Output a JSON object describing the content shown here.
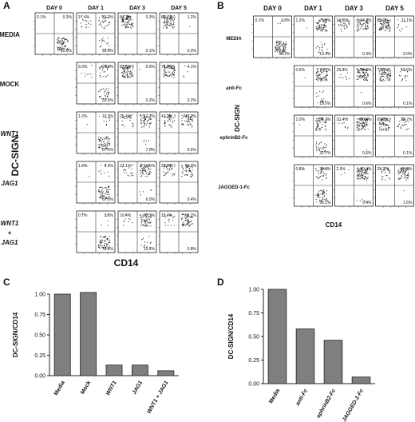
{
  "panel_letters": {
    "a": "A",
    "b": "B",
    "c": "C",
    "d": "D"
  },
  "panel_a": {
    "day_headers": [
      "DAY 0",
      "DAY 1",
      "DAY 3",
      "DAY 5"
    ],
    "row_labels": [
      "MEDIA",
      "MOCK",
      "WNT1",
      "JAG1",
      "WNT1 + JAG1"
    ],
    "row_label_italic": [
      false,
      false,
      true,
      true,
      true
    ],
    "y_axis_label": "DC-SIGN",
    "x_axis_label": "CD14",
    "quadrants": [
      [
        [
          "0.1%",
          "0.3%",
          "",
          "80.0%"
        ],
        [
          "17.4%",
          "33.2%",
          "",
          "18.9%"
        ],
        [
          "84.1%",
          "0.3%",
          "",
          "0.1%"
        ],
        [
          "80.7%",
          "1.2%",
          "",
          "0.3%"
        ]
      ],
      [
        null,
        [
          "9.3%",
          "28.9%",
          "",
          "32.6%"
        ],
        [
          "82.5%",
          "0.9%",
          "",
          "0.2%"
        ],
        [
          "76.0%",
          "4.1%",
          "",
          "0.2%"
        ]
      ],
      [
        null,
        [
          "1.2%",
          "10.3%",
          "",
          "67.1%"
        ],
        [
          "25.4%",
          "57.1%",
          "",
          "7.0%"
        ],
        [
          "41.3%",
          "48.2%",
          "",
          "0.5%"
        ]
      ],
      [
        null,
        [
          "1.8%",
          "9.9%",
          "",
          "67.0%"
        ],
        [
          "21.1%",
          "61.6%",
          "",
          "6.0%"
        ],
        [
          "38.0%",
          "49.9%",
          "",
          "0.4%"
        ]
      ],
      [
        null,
        [
          "0.7%",
          "5.6%",
          "",
          "72.8%"
        ],
        [
          "10.4%",
          "63.3%",
          "",
          "15.2%"
        ],
        [
          "19.4%",
          "69.7%",
          "",
          "0.6%"
        ]
      ]
    ]
  },
  "panel_b": {
    "day_headers": [
      "DAY 0",
      "DAY 1",
      "DAY 3",
      "DAY 5"
    ],
    "row_labels": [
      "MEDIA",
      "anti-Fc",
      "ephrinB2-Fc",
      "JAGGED-1-Fc"
    ],
    "y_axis_label": "DC-SIGN",
    "x_axis_label": "CD14",
    "quadrants": [
      [
        [
          "0.1%",
          "2.8%",
          "",
          "93.2%"
        ],
        [
          "1.2%",
          "75.5%",
          "",
          "19.4%"
        ],
        [
          "34.0%",
          "64.3%",
          "",
          "0.3%"
        ],
        [
          "87.0%",
          "11.1%",
          "",
          "0.0%"
        ]
      ],
      [
        null,
        [
          "0.6%",
          "76.0%",
          "",
          "19.0%"
        ],
        [
          "13.2%",
          "84.8%",
          "",
          "0.6%"
        ],
        [
          "79.0%",
          "18.6%",
          "",
          "0.1%"
        ]
      ],
      [
        null,
        [
          "1.0%",
          "56.2%",
          "",
          "31.7%"
        ],
        [
          "10.4%",
          "88.0%",
          "",
          "0.6%"
        ],
        [
          "69.0%",
          "28.7%",
          "",
          "0.1%"
        ]
      ],
      [
        null,
        [
          "0.8%",
          "38.6%",
          "",
          "55.1%"
        ],
        [
          "2.9%",
          "89.4%",
          "",
          "5.4%"
        ],
        [
          "29.3%",
          "66.9%",
          "",
          "1.6%"
        ]
      ]
    ]
  },
  "chart_data": [
    {
      "type": "bar",
      "panel": "C",
      "categories": [
        "Media",
        "Mock",
        "WNT1",
        "JAG1",
        "WNT1 + JAG1"
      ],
      "category_italic": [
        false,
        false,
        true,
        true,
        true
      ],
      "values": [
        1.0,
        1.02,
        0.13,
        0.13,
        0.06
      ],
      "ylabel": "DC-SIGN/CD14",
      "ylim": [
        0,
        1.0
      ],
      "yticks": [
        "0.00",
        "0.25",
        "0.50",
        "0.75",
        "1.00"
      ],
      "bar_color": "#7f7f7f"
    },
    {
      "type": "bar",
      "panel": "D",
      "categories": [
        "Media",
        "anti-Fc",
        "ephrinB2-Fc",
        "JAGGED-1-Fc"
      ],
      "category_italic": [
        false,
        true,
        true,
        true
      ],
      "values": [
        1.0,
        0.58,
        0.46,
        0.07
      ],
      "ylabel": "DC-SIGN/CD14",
      "ylim": [
        0,
        1.0
      ],
      "yticks": [
        "0.00",
        "0.25",
        "0.50",
        "0.75",
        "1.00"
      ],
      "bar_color": "#7f7f7f"
    }
  ]
}
